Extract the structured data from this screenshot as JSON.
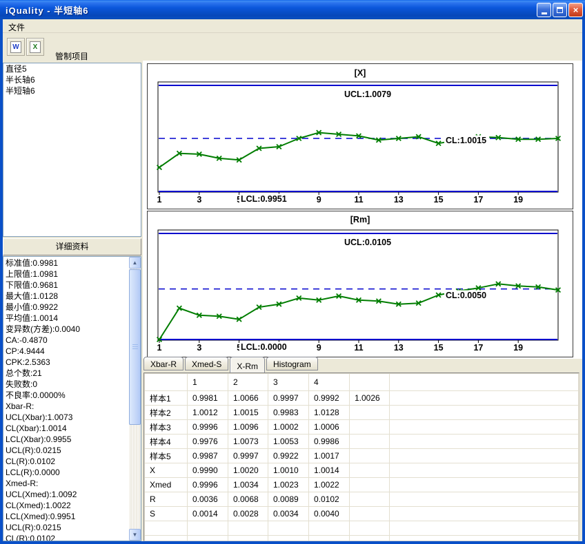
{
  "window": {
    "title": "iQuality - 半短轴6"
  },
  "window_controls": {
    "minimize": "minimize",
    "maximize": "maximize",
    "close": "close"
  },
  "menu": {
    "items": [
      {
        "label": "文件"
      }
    ]
  },
  "toolbar": {
    "icon_glyphs": {
      "word": "W",
      "excel": "X"
    }
  },
  "left": {
    "control_items_title": "管制项目",
    "control_items": [
      "直径5",
      "半长轴6",
      "半短轴6"
    ],
    "details_title": "详细资料",
    "details": [
      "标准值:0.9981",
      "上限值:1.0981",
      "下限值:0.9681",
      "最大值:1.0128",
      "最小值:0.9922",
      "平均值:1.0014",
      "变异数(方差):0.0040",
      "CA:-0.4870",
      "CP:4.9444",
      "CPK:2.5363",
      "总个数:21",
      "失败数:0",
      "不良率:0.0000%",
      "Xbar-R:",
      "UCL(Xbar):1.0073",
      "CL(Xbar):1.0014",
      "LCL(Xbar):0.9955",
      "UCL(R):0.0215",
      "CL(R):0.0102",
      "LCL(R):0.0000",
      "Xmed-R:",
      "UCL(Xmed):1.0092",
      "CL(Xmed):1.0022",
      "LCL(Xmed):0.9951",
      "UCL(R):0.0215",
      "CL(R):0.0102"
    ]
  },
  "tabs": {
    "items": [
      "Xbar-R",
      "Xmed-S",
      "X-Rm",
      "Histogram"
    ],
    "active": "X-Rm"
  },
  "table": {
    "headers": [
      "",
      "1",
      "2",
      "3",
      "4",
      "",
      ""
    ],
    "rows": [
      {
        "label": "样本1",
        "values": [
          "0.9981",
          "1.0066",
          "0.9997",
          "0.9992",
          "1.0026"
        ]
      },
      {
        "label": "样本2",
        "values": [
          "1.0012",
          "1.0015",
          "0.9983",
          "1.0128",
          ""
        ]
      },
      {
        "label": "样本3",
        "values": [
          "0.9996",
          "1.0096",
          "1.0002",
          "1.0006",
          ""
        ]
      },
      {
        "label": "样本4",
        "values": [
          "0.9976",
          "1.0073",
          "1.0053",
          "0.9986",
          ""
        ]
      },
      {
        "label": "样本5",
        "values": [
          "0.9987",
          "0.9997",
          "0.9922",
          "1.0017",
          ""
        ]
      },
      {
        "label": "X",
        "values": [
          "0.9990",
          "1.0020",
          "1.0010",
          "1.0014",
          ""
        ]
      },
      {
        "label": "Xmed",
        "values": [
          "0.9996",
          "1.0034",
          "1.0023",
          "1.0022",
          ""
        ]
      },
      {
        "label": "R",
        "values": [
          "0.0036",
          "0.0068",
          "0.0089",
          "0.0102",
          ""
        ]
      },
      {
        "label": "S",
        "values": [
          "0.0014",
          "0.0028",
          "0.0034",
          "0.0040",
          ""
        ]
      }
    ]
  },
  "chart_data": [
    {
      "type": "line",
      "title": "[X]",
      "ucl": {
        "label": "UCL:1.0079",
        "value": 1.0079
      },
      "cl": {
        "label": "CL:1.0015",
        "value": 1.0015
      },
      "lcl": {
        "label": "LCL:0.9951",
        "value": 0.9951
      },
      "x": [
        1,
        2,
        3,
        4,
        5,
        6,
        7,
        8,
        9,
        10,
        11,
        12,
        13,
        14,
        15,
        16,
        17,
        18,
        19,
        20,
        21
      ],
      "values": [
        0.998,
        0.9997,
        0.9996,
        0.9991,
        0.9989,
        1.0003,
        1.0005,
        1.0015,
        1.0022,
        1.002,
        1.0018,
        1.0013,
        1.0015,
        1.0017,
        1.0009,
        1.0013,
        1.0017,
        1.0016,
        1.0014,
        1.0014,
        1.0015
      ],
      "x_tick_labels": [
        "1",
        "3",
        "5",
        "9",
        "11",
        "13",
        "15",
        "17",
        "19"
      ],
      "ylim": [
        0.9951,
        1.0079
      ],
      "line_color": "#007D00",
      "control_line_color": "#0000CD",
      "legend": "none",
      "grid": "off"
    },
    {
      "type": "line",
      "title": "[Rm]",
      "ucl": {
        "label": "UCL:0.0105",
        "value": 0.0105
      },
      "cl": {
        "label": "CL:0.0050",
        "value": 0.005
      },
      "lcl": {
        "label": "LCL:0.0000",
        "value": 0.0
      },
      "x": [
        1,
        2,
        3,
        4,
        5,
        6,
        7,
        8,
        9,
        10,
        11,
        12,
        13,
        14,
        15,
        16,
        17,
        18,
        19,
        20,
        21
      ],
      "values": [
        0.0,
        0.0031,
        0.0024,
        0.0023,
        0.002,
        0.0032,
        0.0035,
        0.0041,
        0.0039,
        0.0043,
        0.0039,
        0.0038,
        0.0035,
        0.0036,
        0.0044,
        0.0048,
        0.0051,
        0.0055,
        0.0053,
        0.0052,
        0.0049
      ],
      "x_tick_labels": [
        "1",
        "3",
        "5",
        "9",
        "11",
        "13",
        "15",
        "17",
        "19"
      ],
      "ylim": [
        0.0,
        0.0105
      ],
      "line_color": "#007D00",
      "control_line_color": "#0000CD",
      "legend": "none",
      "grid": "off"
    }
  ]
}
